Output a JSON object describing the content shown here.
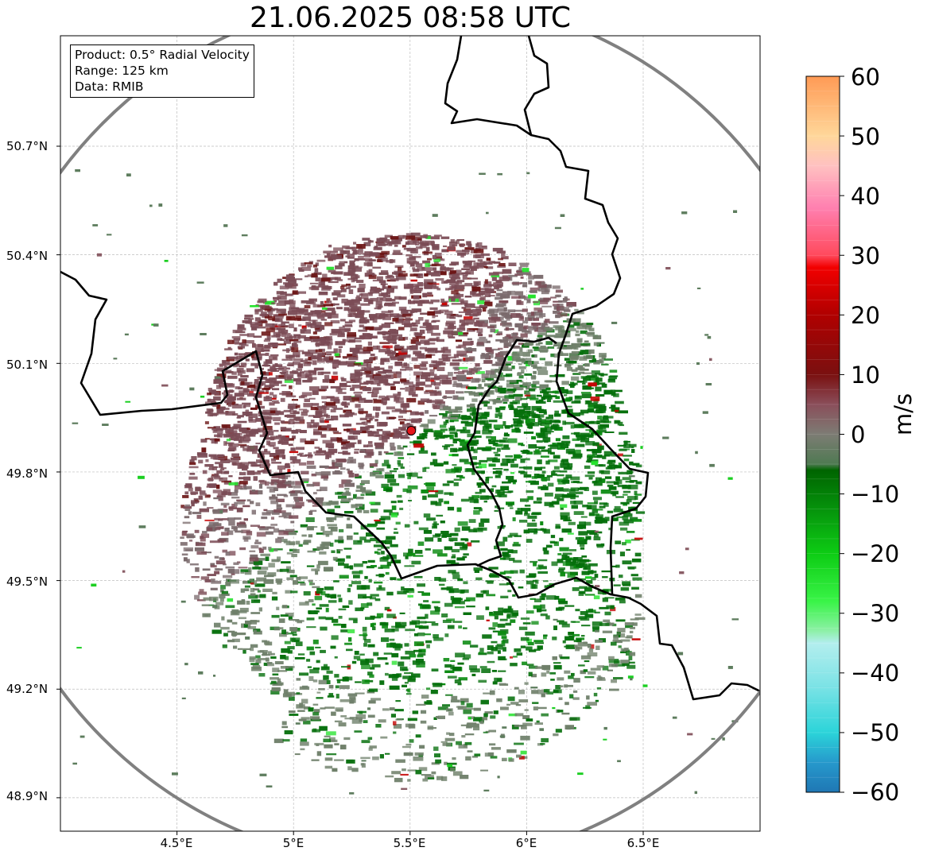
{
  "title": "21.06.2025 08:58 UTC",
  "info": {
    "product": "Product: 0.5° Radial Velocity",
    "range": "Range: 125 km",
    "data": "Data: RMIB"
  },
  "lat_labels": [
    "50.7°N",
    "50.4°N",
    "50.1°N",
    "49.8°N",
    "49.5°N",
    "49.2°N",
    "48.9°N"
  ],
  "lon_labels": [
    "4.5°E",
    "5°E",
    "5.5°E",
    "6°E",
    "6.5°E"
  ],
  "colorbar": {
    "unit": "m/s",
    "min": -60,
    "max": 60,
    "tick_labels": [
      "60",
      "50",
      "40",
      "30",
      "20",
      "10",
      "0",
      "−10",
      "−20",
      "−30",
      "−40",
      "−50",
      "−60"
    ],
    "stops": [
      {
        "v": -60,
        "c": "#1f77b4"
      },
      {
        "v": -55,
        "c": "#2699cc"
      },
      {
        "v": -50,
        "c": "#2bd4d9"
      },
      {
        "v": -42,
        "c": "#7ee3e6"
      },
      {
        "v": -35,
        "c": "#b3eeee"
      },
      {
        "v": -33,
        "c": "#8ef0a8"
      },
      {
        "v": -28,
        "c": "#39f447"
      },
      {
        "v": -20,
        "c": "#0dcc14"
      },
      {
        "v": -12,
        "c": "#058f0b"
      },
      {
        "v": -6,
        "c": "#006400"
      },
      {
        "v": -5,
        "c": "#4f7a52"
      },
      {
        "v": 0,
        "c": "#7d7c74"
      },
      {
        "v": 5,
        "c": "#8a4e5a"
      },
      {
        "v": 10,
        "c": "#7a1010"
      },
      {
        "v": 20,
        "c": "#b00000"
      },
      {
        "v": 28,
        "c": "#f20000"
      },
      {
        "v": 30,
        "c": "#ff4a5d"
      },
      {
        "v": 38,
        "c": "#ff80b0"
      },
      {
        "v": 45,
        "c": "#ffc1c1"
      },
      {
        "v": 50,
        "c": "#ffd79a"
      },
      {
        "v": 60,
        "c": "#ff9a55"
      }
    ]
  },
  "map": {
    "lon_range": [
      4.0,
      7.0
    ],
    "lat_range": [
      48.8,
      51.0
    ],
    "radar_site": {
      "lon": 5.505,
      "lat": 49.914
    },
    "range_km": 125,
    "colors": {
      "approaching": "#056f0b",
      "receding": "#7b4c56",
      "near_zero": "#6f806a",
      "site": "#e4161b",
      "range_ring": "#808080",
      "border": "#000000"
    }
  }
}
